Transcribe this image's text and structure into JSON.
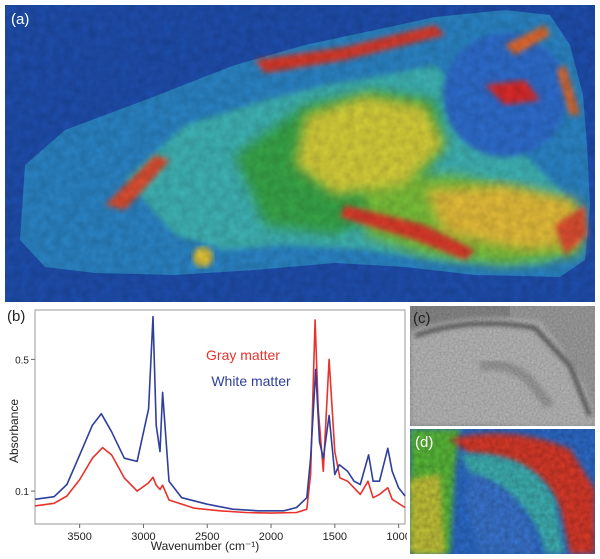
{
  "panels": {
    "a": {
      "label": "(a)"
    },
    "b": {
      "label": "(b)"
    },
    "c": {
      "label": "(c)"
    },
    "d": {
      "label": "(d)"
    }
  },
  "colors": {
    "map_background": "#1f4fb0",
    "gray_matter": "#e8322b",
    "white_matter": "#2f3f9c",
    "micrograph": "#8c8c8c"
  },
  "chart_data": {
    "type": "line",
    "xlabel": "Wavenumber (cm⁻¹)",
    "ylabel": "Absorbance",
    "xlim": [
      3850,
      950
    ],
    "x_reversed": true,
    "xticks": [
      3500,
      3000,
      2500,
      2000,
      1500,
      1000
    ],
    "yticks": [
      {
        "value": 0.1,
        "label": "0.1"
      },
      {
        "value": 0.5,
        "label": "0.5"
      }
    ],
    "ylim": [
      0.0,
      0.65
    ],
    "grid": false,
    "legend_position": "top-center",
    "series": [
      {
        "name": "Gray matter",
        "color": "#e8322b",
        "points": [
          [
            3850,
            0.055
          ],
          [
            3700,
            0.063
          ],
          [
            3600,
            0.085
          ],
          [
            3500,
            0.135
          ],
          [
            3400,
            0.2
          ],
          [
            3320,
            0.232
          ],
          [
            3250,
            0.21
          ],
          [
            3150,
            0.14
          ],
          [
            3050,
            0.1
          ],
          [
            2960,
            0.125
          ],
          [
            2925,
            0.142
          ],
          [
            2900,
            0.118
          ],
          [
            2870,
            0.105
          ],
          [
            2850,
            0.118
          ],
          [
            2800,
            0.073
          ],
          [
            2600,
            0.048
          ],
          [
            2400,
            0.04
          ],
          [
            2200,
            0.035
          ],
          [
            2000,
            0.033
          ],
          [
            1800,
            0.035
          ],
          [
            1720,
            0.045
          ],
          [
            1690,
            0.15
          ],
          [
            1655,
            0.62
          ],
          [
            1630,
            0.35
          ],
          [
            1590,
            0.16
          ],
          [
            1545,
            0.5
          ],
          [
            1500,
            0.22
          ],
          [
            1460,
            0.14
          ],
          [
            1400,
            0.13
          ],
          [
            1350,
            0.11
          ],
          [
            1300,
            0.09
          ],
          [
            1240,
            0.13
          ],
          [
            1200,
            0.08
          ],
          [
            1150,
            0.09
          ],
          [
            1085,
            0.11
          ],
          [
            1050,
            0.075
          ],
          [
            950,
            0.05
          ]
        ]
      },
      {
        "name": "White matter",
        "color": "#2f3f9c",
        "points": [
          [
            3850,
            0.075
          ],
          [
            3700,
            0.083
          ],
          [
            3600,
            0.12
          ],
          [
            3500,
            0.21
          ],
          [
            3400,
            0.3
          ],
          [
            3330,
            0.335
          ],
          [
            3250,
            0.28
          ],
          [
            3150,
            0.2
          ],
          [
            3050,
            0.19
          ],
          [
            2960,
            0.35
          ],
          [
            2925,
            0.63
          ],
          [
            2900,
            0.3
          ],
          [
            2870,
            0.22
          ],
          [
            2850,
            0.4
          ],
          [
            2800,
            0.13
          ],
          [
            2700,
            0.08
          ],
          [
            2500,
            0.06
          ],
          [
            2300,
            0.045
          ],
          [
            2100,
            0.04
          ],
          [
            1900,
            0.04
          ],
          [
            1800,
            0.05
          ],
          [
            1720,
            0.08
          ],
          [
            1690,
            0.2
          ],
          [
            1650,
            0.47
          ],
          [
            1620,
            0.25
          ],
          [
            1590,
            0.2
          ],
          [
            1545,
            0.33
          ],
          [
            1500,
            0.15
          ],
          [
            1465,
            0.18
          ],
          [
            1400,
            0.16
          ],
          [
            1350,
            0.13
          ],
          [
            1300,
            0.12
          ],
          [
            1235,
            0.21
          ],
          [
            1200,
            0.13
          ],
          [
            1150,
            0.13
          ],
          [
            1085,
            0.23
          ],
          [
            1050,
            0.16
          ],
          [
            1000,
            0.11
          ],
          [
            950,
            0.085
          ]
        ]
      }
    ]
  }
}
